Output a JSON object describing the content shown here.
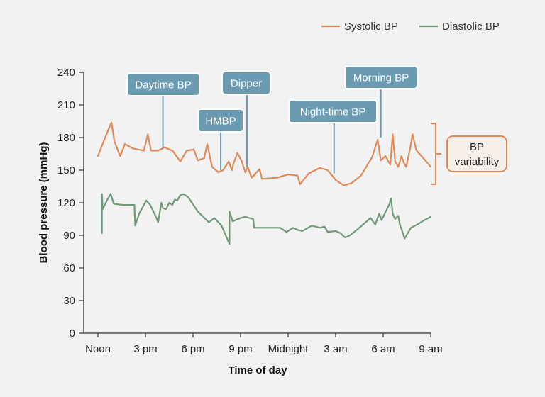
{
  "chart_data": {
    "type": "line",
    "title": "",
    "xlabel": "Time of day",
    "ylabel": "Blood pressure (mmHg)",
    "xlim": [
      0,
      21
    ],
    "ylim": [
      0,
      240
    ],
    "grid": false,
    "legend_position": "top-right",
    "x_ticks": [
      {
        "x": 0,
        "label": "Noon"
      },
      {
        "x": 3,
        "label": "3 pm"
      },
      {
        "x": 6,
        "label": "6 pm"
      },
      {
        "x": 9,
        "label": "9 pm"
      },
      {
        "x": 12,
        "label": "Midnight"
      },
      {
        "x": 15,
        "label": "3 am"
      },
      {
        "x": 18,
        "label": "6 am"
      },
      {
        "x": 21,
        "label": "9 am"
      }
    ],
    "y_ticks": [
      0,
      30,
      60,
      90,
      120,
      150,
      180,
      210,
      240
    ],
    "series": [
      {
        "name": "Systolic BP",
        "color": "#e08a5a",
        "points": [
          [
            0,
            163
          ],
          [
            0.4,
            178
          ],
          [
            0.85,
            194
          ],
          [
            1.05,
            176
          ],
          [
            1.4,
            163
          ],
          [
            1.7,
            174
          ],
          [
            2.2,
            170
          ],
          [
            2.9,
            168
          ],
          [
            3.15,
            183
          ],
          [
            3.35,
            168
          ],
          [
            3.8,
            168
          ],
          [
            4.2,
            171
          ],
          [
            4.7,
            168
          ],
          [
            5.2,
            158
          ],
          [
            5.6,
            168
          ],
          [
            6.05,
            169
          ],
          [
            6.3,
            159
          ],
          [
            6.7,
            161
          ],
          [
            6.9,
            174
          ],
          [
            7.2,
            153
          ],
          [
            7.6,
            148
          ],
          [
            7.9,
            150
          ],
          [
            8.25,
            158
          ],
          [
            8.45,
            150
          ],
          [
            8.55,
            156
          ],
          [
            8.8,
            166
          ],
          [
            9.05,
            159
          ],
          [
            9.3,
            148
          ],
          [
            9.45,
            153
          ],
          [
            9.7,
            143
          ],
          [
            10.2,
            151
          ],
          [
            10.35,
            142
          ],
          [
            11.3,
            143
          ],
          [
            12.0,
            146
          ],
          [
            12.6,
            145
          ],
          [
            12.75,
            137
          ],
          [
            13.3,
            147
          ],
          [
            14.0,
            152
          ],
          [
            14.5,
            150
          ],
          [
            15.0,
            141
          ],
          [
            15.5,
            136
          ],
          [
            16.0,
            138
          ],
          [
            16.6,
            145
          ],
          [
            17.3,
            162
          ],
          [
            17.65,
            178
          ],
          [
            17.85,
            159
          ],
          [
            18.15,
            163
          ],
          [
            18.45,
            155
          ],
          [
            18.6,
            183
          ],
          [
            18.75,
            158
          ],
          [
            18.95,
            153
          ],
          [
            19.15,
            163
          ],
          [
            19.3,
            157
          ],
          [
            19.45,
            153
          ],
          [
            19.7,
            170
          ],
          [
            19.85,
            183
          ],
          [
            20.1,
            168
          ],
          [
            20.6,
            160
          ],
          [
            21.0,
            153
          ]
        ]
      },
      {
        "name": "Diastolic BP",
        "color": "#6f9a78",
        "points": [
          [
            0.25,
            92
          ],
          [
            0.25,
            128
          ],
          [
            0.3,
            114
          ],
          [
            0.6,
            123
          ],
          [
            0.8,
            128
          ],
          [
            1.0,
            119
          ],
          [
            1.6,
            118
          ],
          [
            2.3,
            118
          ],
          [
            2.35,
            99
          ],
          [
            2.6,
            110
          ],
          [
            3.05,
            122
          ],
          [
            3.3,
            118
          ],
          [
            3.6,
            109
          ],
          [
            3.8,
            102
          ],
          [
            4.0,
            120
          ],
          [
            4.1,
            115
          ],
          [
            4.3,
            114
          ],
          [
            4.5,
            120
          ],
          [
            4.7,
            118
          ],
          [
            4.85,
            123
          ],
          [
            5.0,
            122
          ],
          [
            5.2,
            127
          ],
          [
            5.4,
            128
          ],
          [
            5.7,
            125
          ],
          [
            6.3,
            112
          ],
          [
            7.0,
            102
          ],
          [
            7.35,
            106
          ],
          [
            7.8,
            99
          ],
          [
            8.3,
            82
          ],
          [
            8.3,
            112
          ],
          [
            8.5,
            103
          ],
          [
            9.0,
            106
          ],
          [
            9.3,
            107
          ],
          [
            9.8,
            105
          ],
          [
            9.85,
            97
          ],
          [
            10.5,
            97
          ],
          [
            11.5,
            97
          ],
          [
            11.9,
            93
          ],
          [
            12.3,
            97
          ],
          [
            12.6,
            95
          ],
          [
            12.9,
            94
          ],
          [
            13.5,
            99
          ],
          [
            14.0,
            97
          ],
          [
            14.3,
            98
          ],
          [
            14.5,
            93
          ],
          [
            15.0,
            94
          ],
          [
            15.3,
            92
          ],
          [
            15.6,
            88
          ],
          [
            15.9,
            90
          ],
          [
            16.5,
            97
          ],
          [
            17.2,
            106
          ],
          [
            17.5,
            100
          ],
          [
            17.75,
            110
          ],
          [
            17.9,
            104
          ],
          [
            18.1,
            110
          ],
          [
            18.4,
            119
          ],
          [
            18.5,
            124
          ],
          [
            18.6,
            110
          ],
          [
            18.75,
            105
          ],
          [
            18.95,
            108
          ],
          [
            19.05,
            100
          ],
          [
            19.2,
            94
          ],
          [
            19.35,
            87
          ],
          [
            19.55,
            92
          ],
          [
            19.75,
            97
          ],
          [
            20.15,
            100
          ],
          [
            20.6,
            104
          ],
          [
            21.0,
            107
          ]
        ]
      }
    ],
    "annotations": [
      {
        "label": "Daytime BP",
        "x": 4.1,
        "y": 170
      },
      {
        "label": "HMBP",
        "x": 7.75,
        "y": 150
      },
      {
        "label": "Dipper",
        "x": 9.4,
        "y": 153
      },
      {
        "label": "Night-time BP",
        "x": 14.9,
        "y": 147
      },
      {
        "label": "Morning BP",
        "x": 17.85,
        "y": 180
      }
    ],
    "range_note": {
      "label_line1": "BP",
      "label_line2": "variability",
      "y_min": 137,
      "y_max": 193
    }
  }
}
